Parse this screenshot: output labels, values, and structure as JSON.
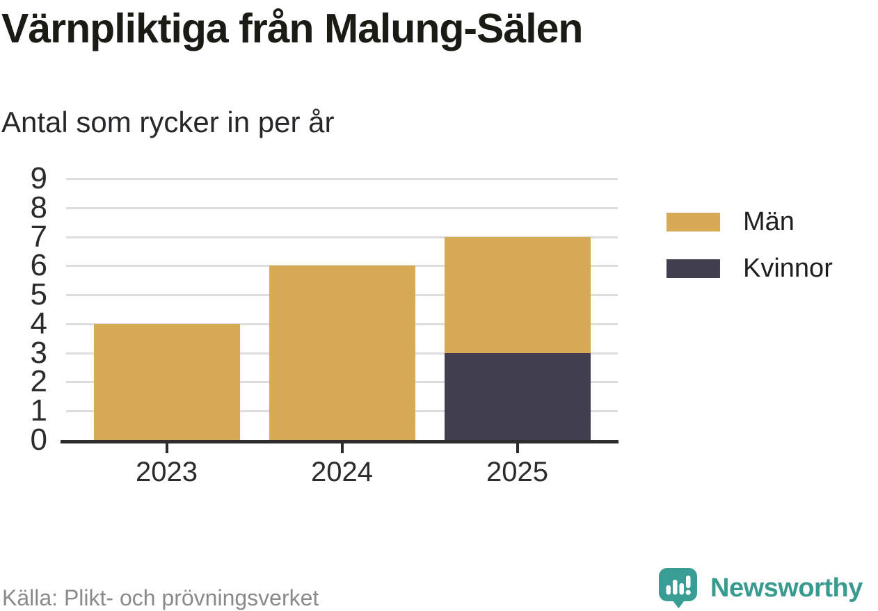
{
  "chart_data": {
    "type": "bar",
    "stacked": true,
    "title": "Värnpliktiga från Malung-Sälen",
    "subtitle": "Antal som rycker in per år",
    "source": "Källa: Plikt- och prövningsverket",
    "categories": [
      "2023",
      "2024",
      "2025"
    ],
    "series": [
      {
        "name": "Män",
        "color": "#d9aa55",
        "values": [
          4,
          6,
          4
        ]
      },
      {
        "name": "Kvinnor",
        "color": "#413e4f",
        "values": [
          0,
          0,
          3
        ]
      }
    ],
    "stack_order_bottom_to_top": [
      "Kvinnor",
      "Män"
    ],
    "totals": [
      4,
      6,
      7
    ],
    "xlabel": "",
    "ylabel": "",
    "ylim": [
      0,
      9
    ],
    "yticks": [
      0,
      1,
      2,
      3,
      4,
      5,
      6,
      7,
      8,
      9
    ],
    "grid": true,
    "legend_position": "right"
  },
  "branding": {
    "name": "Newsworthy"
  },
  "colors": {
    "bar_men": "#d9aa55",
    "bar_women": "#413e4f",
    "gridline": "#dddddd",
    "axis": "#2d2d2d",
    "title_text": "#1b1b15",
    "muted_text": "#8a8a8a",
    "brand_teal": "#399a90"
  }
}
